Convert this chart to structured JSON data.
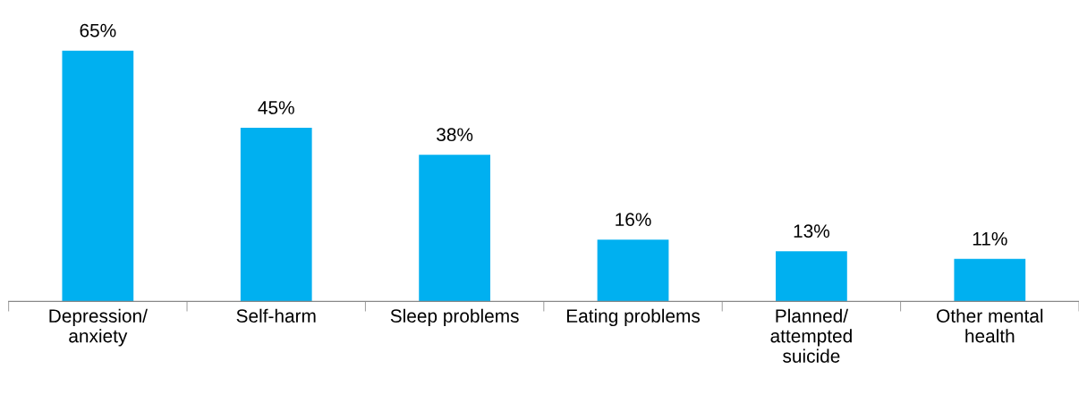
{
  "chart_data": {
    "type": "bar",
    "categories": [
      "Depression/\nanxiety",
      "Self-harm",
      "Sleep problems",
      "Eating problems",
      "Planned/\nattempted\nsuicide",
      "Other mental\nhealth"
    ],
    "values": [
      65,
      45,
      38,
      16,
      13,
      11
    ],
    "value_labels": [
      "65%",
      "45%",
      "38%",
      "16%",
      "13%",
      "11%"
    ],
    "color": "#00b0f0",
    "grid": false,
    "legend": false,
    "tick_labels": "x"
  }
}
